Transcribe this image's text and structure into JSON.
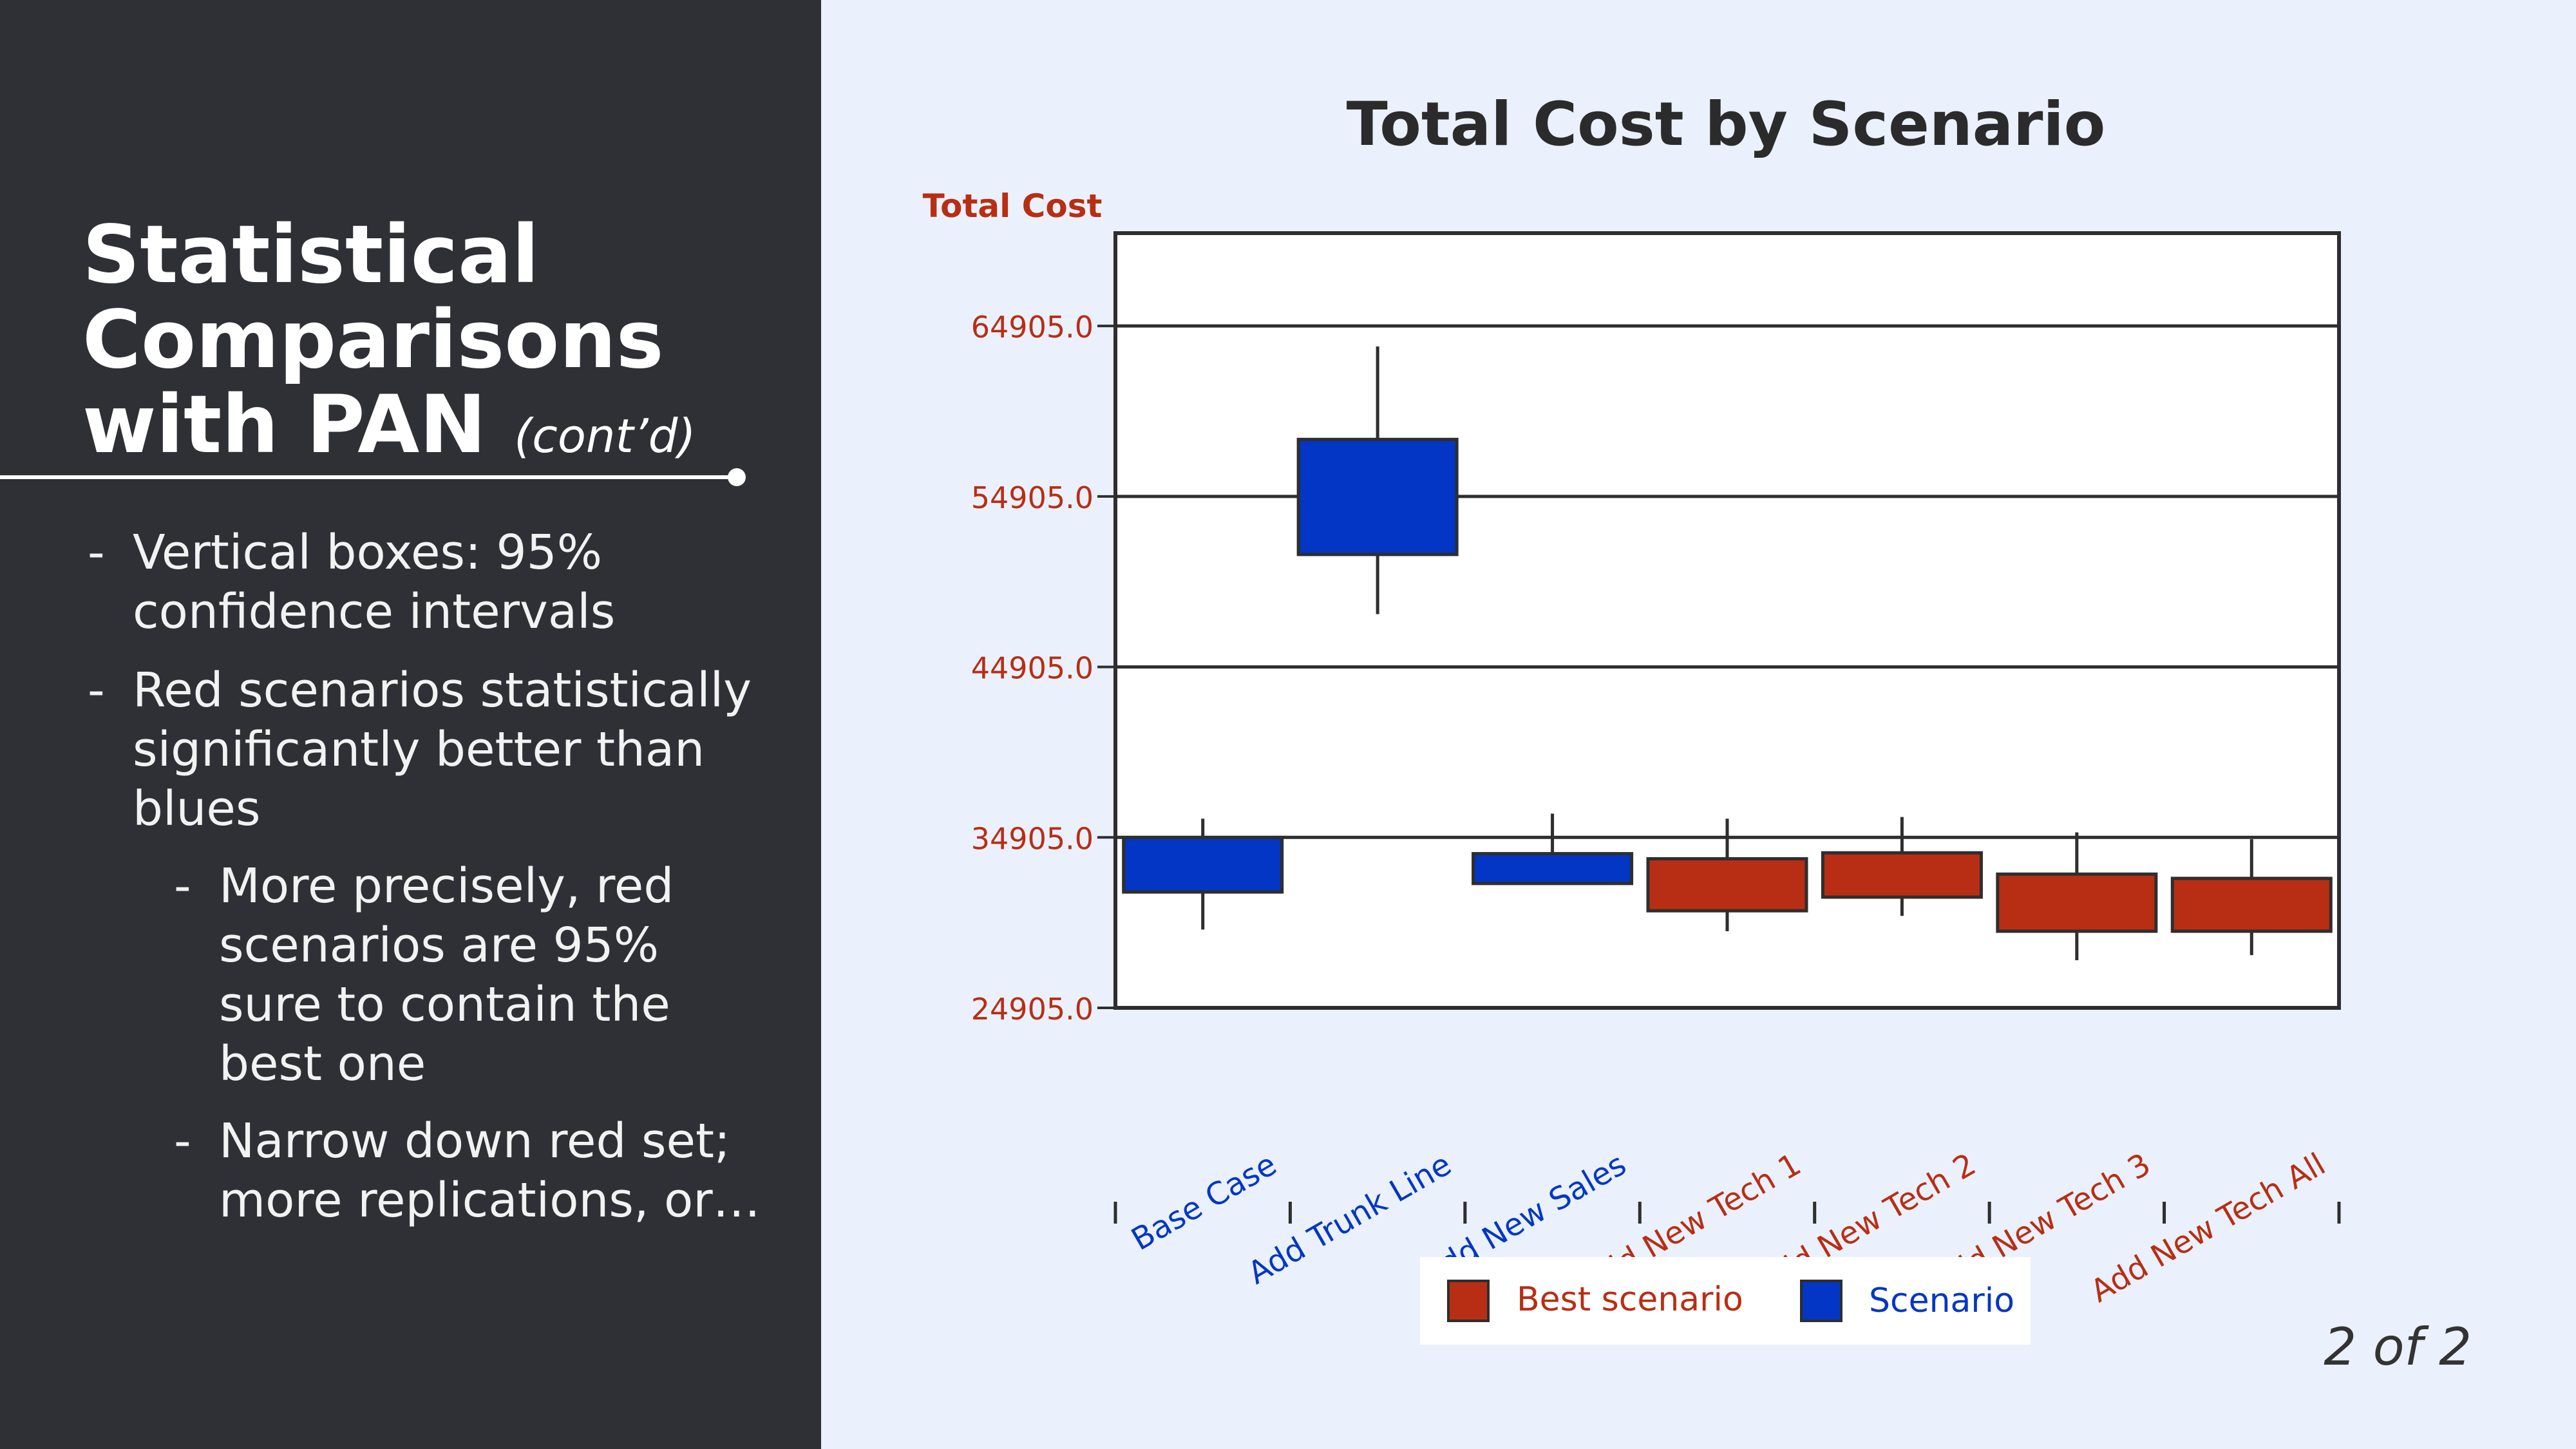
{
  "slide": {
    "title_main": "Statistical Comparisons with PAN",
    "title_sub": "(cont’d)",
    "bullets": [
      {
        "dash": "-",
        "text": "Vertical boxes: 95% confidence intervals"
      },
      {
        "dash": "-",
        "text": "Red scenarios statistically significantly better than blues"
      },
      {
        "dash": "-",
        "text": "More precisely, red scenarios are 95% sure to contain the best one"
      },
      {
        "dash": "-",
        "text": "Narrow down red set; more replications, or…"
      }
    ],
    "page_number": "2 of 2"
  },
  "colors": {
    "left_panel": "#2e3035",
    "background": "#eaf1fc",
    "best": "#b82e14",
    "scenario": "#0336c4",
    "axis_label": "#b82e14"
  },
  "chart_data": {
    "type": "box",
    "title": "Total Cost by Scenario",
    "ylabel": "Total Cost",
    "xlabel": "",
    "ylim": [
      24905.0,
      70350
    ],
    "yticks": [
      "24905.0",
      "34905.0",
      "44905.0",
      "54905.0",
      "64905.0"
    ],
    "ytick_values": [
      24905.0,
      34905.0,
      44905.0,
      54905.0,
      64905.0
    ],
    "grid": "horizontal",
    "legend_position": "bottom",
    "categories": [
      "Base Case",
      "Add Trunk Line",
      "Add New Sales",
      "Add New Tech 1",
      "Add New Tech 2",
      "Add New Tech 3",
      "Add New Tech All"
    ],
    "groups": [
      "scenario",
      "scenario",
      "scenario",
      "best",
      "best",
      "best",
      "best"
    ],
    "box_low": [
      31700,
      51500,
      32200,
      30600,
      31400,
      29400,
      29400
    ],
    "box_high": [
      34900,
      58250,
      33950,
      33650,
      34000,
      32750,
      32500
    ],
    "whisker_low": [
      29500,
      48000,
      32200,
      29400,
      30300,
      27700,
      28000
    ],
    "whisker_high": [
      36000,
      63700,
      36300,
      36000,
      36100,
      35200,
      34800
    ],
    "legend": [
      {
        "key": "best",
        "label": "Best scenario"
      },
      {
        "key": "scenario",
        "label": "Scenario"
      }
    ]
  }
}
